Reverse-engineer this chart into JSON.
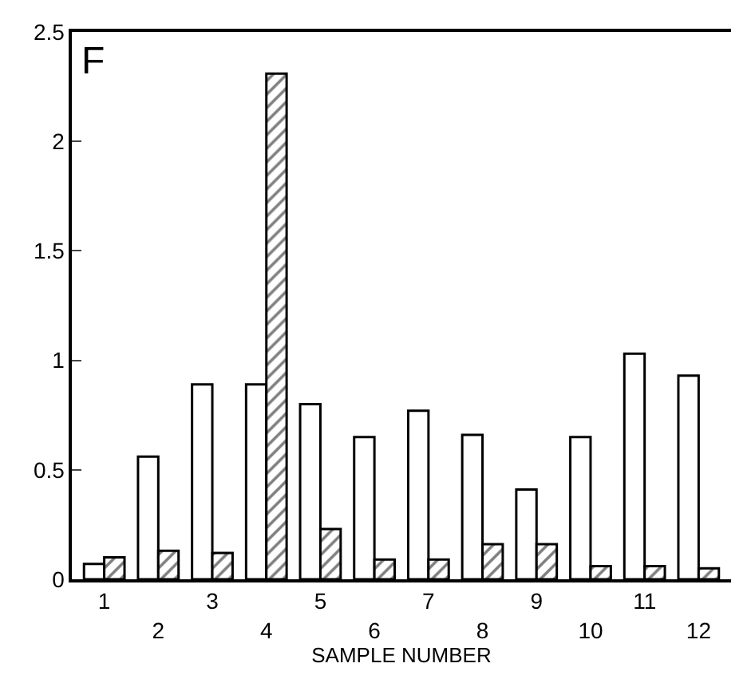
{
  "chart_data": {
    "type": "bar",
    "xlabel": "SAMPLE NUMBER",
    "annotations": [
      "F"
    ],
    "categories": [
      "1",
      "2",
      "3",
      "4",
      "5",
      "6",
      "7",
      "8",
      "9",
      "10",
      "11",
      "12"
    ],
    "series": [
      {
        "color": "#ffffff",
        "values": [
          0.07,
          0.56,
          0.89,
          0.89,
          0.8,
          0.65,
          0.77,
          0.66,
          0.41,
          0.65,
          1.03,
          0.93
        ]
      },
      {
        "color": "#000000",
        "values": [
          0.1,
          0.13,
          0.12,
          2.31,
          0.23,
          0.09,
          0.09,
          0.16,
          0.16,
          0.06,
          0.06,
          0.05
        ]
      }
    ],
    "ylim": [
      0,
      2.5
    ],
    "yticks": [
      0,
      0.5,
      1,
      1.5,
      2,
      2.5
    ]
  }
}
